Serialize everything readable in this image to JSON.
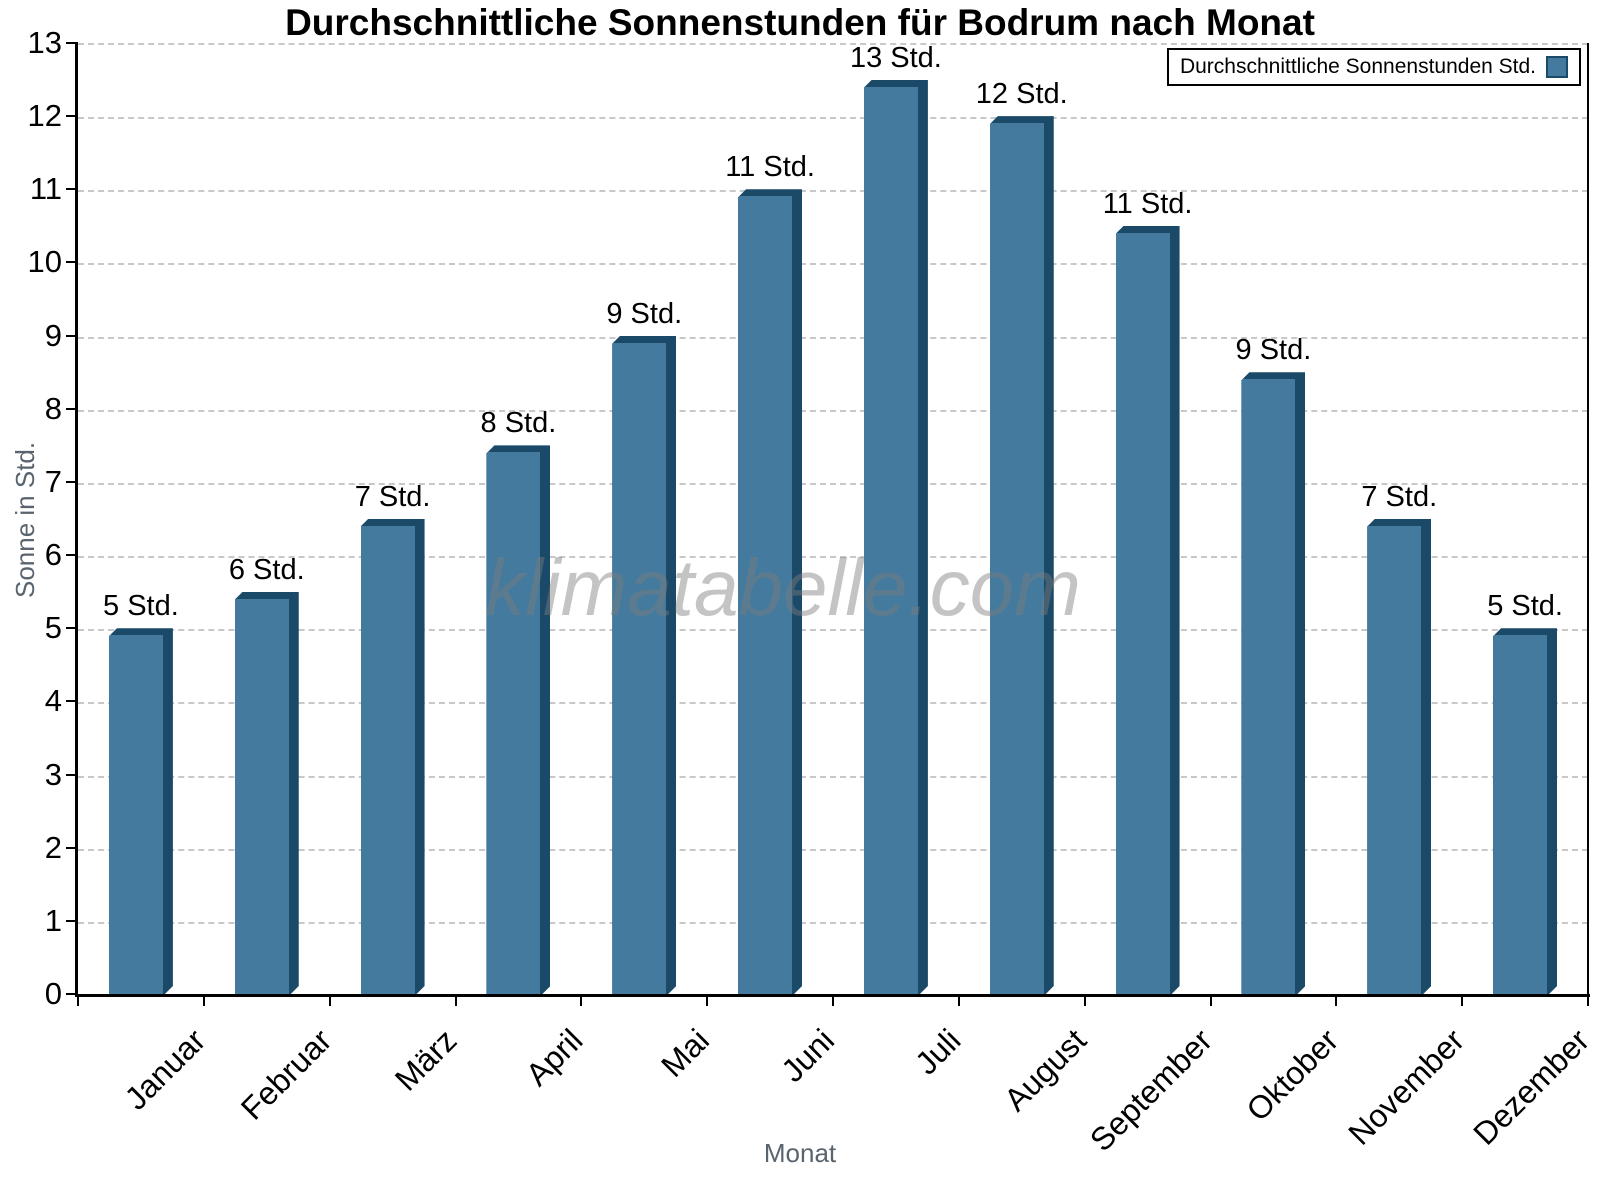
{
  "watermark": "klimatabelle.com",
  "chart_data": {
    "type": "bar",
    "title": "Durchschnittliche Sonnenstunden für Bodrum nach Monat",
    "xlabel": "Monat",
    "ylabel": "Sonne in Std.",
    "categories": [
      "Januar",
      "Februar",
      "März",
      "April",
      "Mai",
      "Juni",
      "Juli",
      "August",
      "September",
      "Oktober",
      "November",
      "Dezember"
    ],
    "values": [
      5,
      5.5,
      6.5,
      7.5,
      9,
      11,
      12.5,
      12,
      10.5,
      8.5,
      6.5,
      5
    ],
    "value_labels": [
      "5 Std.",
      "6 Std.",
      "7 Std.",
      "8 Std.",
      "9 Std.",
      "11 Std.",
      "13 Std.",
      "12 Std.",
      "11 Std.",
      "9 Std.",
      "7 Std.",
      "5 Std."
    ],
    "unit": "Std.",
    "ylim": [
      0,
      13
    ],
    "ytick_labels": [
      "0",
      "1",
      "2",
      "3",
      "4",
      "5",
      "6",
      "7",
      "8",
      "9",
      "10",
      "11",
      "12",
      "13"
    ],
    "grid": "horizontal-dashed",
    "legend": {
      "label": "Durchschnittliche Sonnenstunden Std.",
      "position": "top-right"
    },
    "colors": {
      "bar_face": "#447a9e",
      "bar_edge": "#1b4a68",
      "grid": "#c8c8c8",
      "axis": "#000000",
      "axis_title": "#5a646e",
      "watermark": "#7d7d7d"
    }
  }
}
